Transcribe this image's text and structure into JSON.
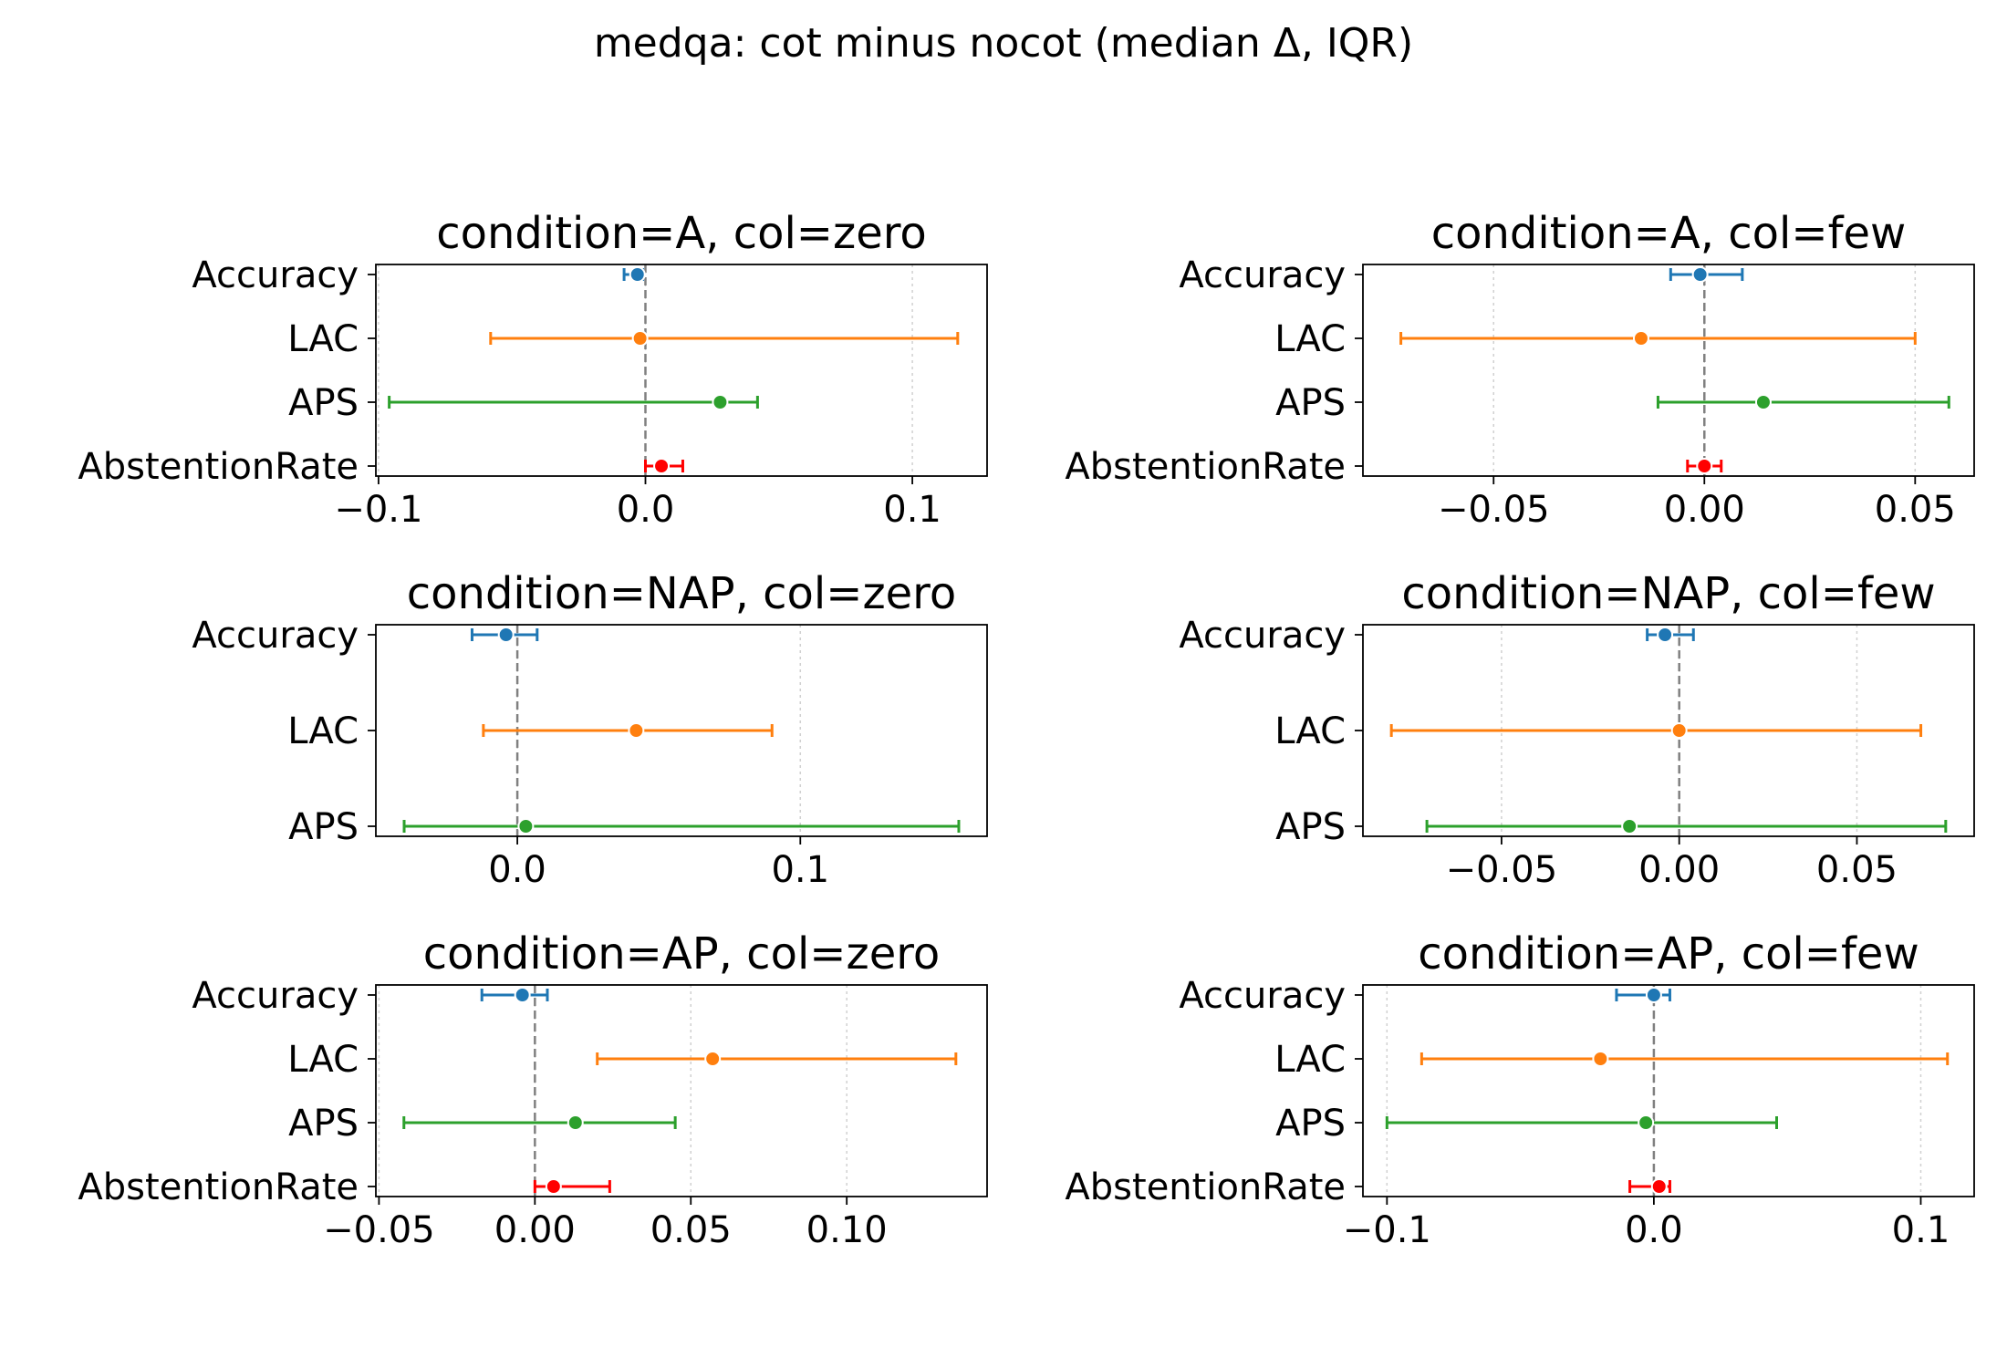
{
  "chart_data": {
    "title": "medqa: cot minus nocot (median Δ, IQR)",
    "type": "errorbar",
    "colors": {
      "Accuracy": "#1f77b4",
      "LAC": "#ff7f0e",
      "APS": "#2ca02c",
      "AbstentionRate": "#ff0000",
      "reference": "#808080",
      "grid": "#d0d0d0"
    },
    "panels": [
      {
        "title": "condition=A, col=zero",
        "xlim": [
          -0.101,
          0.128
        ],
        "xticks": [
          -0.1,
          0.0,
          0.1
        ],
        "xticklabels": [
          "−0.1",
          "0.0",
          "0.1"
        ],
        "series": [
          {
            "name": "Accuracy",
            "median": -0.003,
            "q1": -0.008,
            "q3": -0.001
          },
          {
            "name": "LAC",
            "median": -0.002,
            "q1": -0.058,
            "q3": 0.117
          },
          {
            "name": "APS",
            "median": 0.028,
            "q1": -0.096,
            "q3": 0.042
          },
          {
            "name": "AbstentionRate",
            "median": 0.006,
            "q1": 0.0,
            "q3": 0.014
          }
        ]
      },
      {
        "title": "condition=A, col=few",
        "xlim": [
          -0.081,
          0.064
        ],
        "xticks": [
          -0.05,
          0.0,
          0.05
        ],
        "xticklabels": [
          "−0.05",
          "0.00",
          "0.05"
        ],
        "series": [
          {
            "name": "Accuracy",
            "median": -0.001,
            "q1": -0.008,
            "q3": 0.009
          },
          {
            "name": "LAC",
            "median": -0.015,
            "q1": -0.072,
            "q3": 0.05
          },
          {
            "name": "APS",
            "median": 0.014,
            "q1": -0.011,
            "q3": 0.058
          },
          {
            "name": "AbstentionRate",
            "median": 0.0,
            "q1": -0.004,
            "q3": 0.004
          }
        ]
      },
      {
        "title": "condition=NAP, col=zero",
        "xlim": [
          -0.05,
          0.166
        ],
        "xticks": [
          0.0,
          0.1
        ],
        "xticklabels": [
          "0.0",
          "0.1"
        ],
        "series": [
          {
            "name": "Accuracy",
            "median": -0.004,
            "q1": -0.016,
            "q3": 0.007
          },
          {
            "name": "LAC",
            "median": 0.042,
            "q1": -0.012,
            "q3": 0.09
          },
          {
            "name": "APS",
            "median": 0.003,
            "q1": -0.04,
            "q3": 0.156
          }
        ]
      },
      {
        "title": "condition=NAP, col=few",
        "xlim": [
          -0.089,
          0.083
        ],
        "xticks": [
          -0.05,
          0.0,
          0.05
        ],
        "xticklabels": [
          "−0.05",
          "0.00",
          "0.05"
        ],
        "series": [
          {
            "name": "Accuracy",
            "median": -0.004,
            "q1": -0.009,
            "q3": 0.004
          },
          {
            "name": "LAC",
            "median": 0.0,
            "q1": -0.081,
            "q3": 0.068
          },
          {
            "name": "APS",
            "median": -0.014,
            "q1": -0.071,
            "q3": 0.075
          }
        ]
      },
      {
        "title": "condition=AP, col=zero",
        "xlim": [
          -0.051,
          0.145
        ],
        "xticks": [
          -0.05,
          0.0,
          0.05,
          0.1
        ],
        "xticklabels": [
          "−0.05",
          "0.00",
          "0.05",
          "0.10"
        ],
        "series": [
          {
            "name": "Accuracy",
            "median": -0.004,
            "q1": -0.017,
            "q3": 0.004
          },
          {
            "name": "LAC",
            "median": 0.057,
            "q1": 0.02,
            "q3": 0.135
          },
          {
            "name": "APS",
            "median": 0.013,
            "q1": -0.042,
            "q3": 0.045
          },
          {
            "name": "AbstentionRate",
            "median": 0.006,
            "q1": 0.0,
            "q3": 0.024
          }
        ]
      },
      {
        "title": "condition=AP, col=few",
        "xlim": [
          -0.109,
          0.12
        ],
        "xticks": [
          -0.1,
          0.0,
          0.1
        ],
        "xticklabels": [
          "−0.1",
          "0.0",
          "0.1"
        ],
        "series": [
          {
            "name": "Accuracy",
            "median": 0.0,
            "q1": -0.014,
            "q3": 0.006
          },
          {
            "name": "LAC",
            "median": -0.02,
            "q1": -0.087,
            "q3": 0.11
          },
          {
            "name": "APS",
            "median": -0.003,
            "q1": -0.1,
            "q3": 0.046
          },
          {
            "name": "AbstentionRate",
            "median": 0.002,
            "q1": -0.009,
            "q3": 0.006
          }
        ]
      }
    ]
  }
}
